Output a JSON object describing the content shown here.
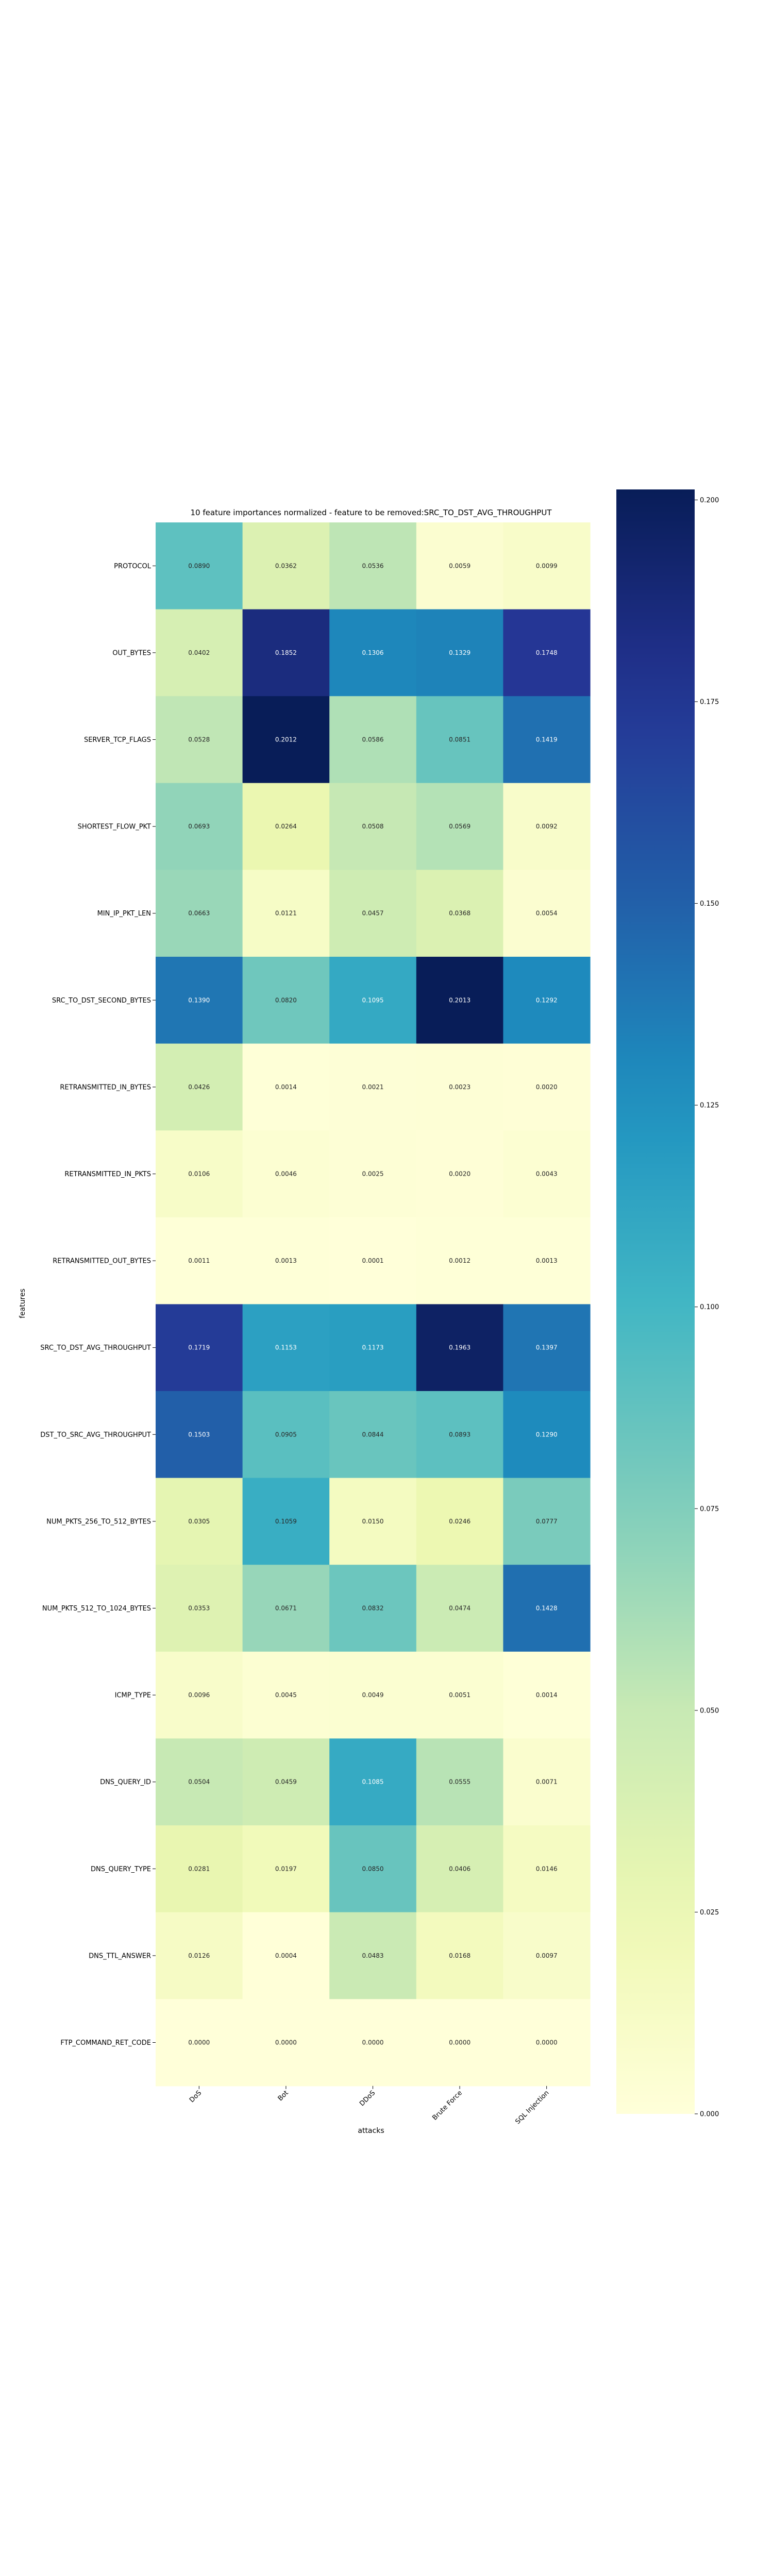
{
  "chart_data": {
    "type": "heatmap",
    "title": "10 feature importances normalized - feature to be removed:SRC_TO_DST_AVG_THROUGHPUT",
    "xlabel": "attacks",
    "ylabel": "features",
    "x_categories": [
      "DoS",
      "Bot",
      "DDoS",
      "Brute Force",
      "SQL Injection"
    ],
    "y_categories": [
      "PROTOCOL",
      "OUT_BYTES",
      "SERVER_TCP_FLAGS",
      "SHORTEST_FLOW_PKT",
      "MIN_IP_PKT_LEN",
      "SRC_TO_DST_SECOND_BYTES",
      "RETRANSMITTED_IN_BYTES",
      "RETRANSMITTED_IN_PKTS",
      "RETRANSMITTED_OUT_BYTES",
      "SRC_TO_DST_AVG_THROUGHPUT",
      "DST_TO_SRC_AVG_THROUGHPUT",
      "NUM_PKTS_256_TO_512_BYTES",
      "NUM_PKTS_512_TO_1024_BYTES",
      "ICMP_TYPE",
      "DNS_QUERY_ID",
      "DNS_QUERY_TYPE",
      "DNS_TTL_ANSWER",
      "FTP_COMMAND_RET_CODE"
    ],
    "values": [
      [
        0.089,
        0.0362,
        0.0536,
        0.0059,
        0.0099
      ],
      [
        0.0402,
        0.1852,
        0.1306,
        0.1329,
        0.1748
      ],
      [
        0.0528,
        0.2012,
        0.0586,
        0.0851,
        0.1419
      ],
      [
        0.0693,
        0.0264,
        0.0508,
        0.0569,
        0.0092
      ],
      [
        0.0663,
        0.0121,
        0.0457,
        0.0368,
        0.0054
      ],
      [
        0.139,
        0.082,
        0.1095,
        0.2013,
        0.1292
      ],
      [
        0.0426,
        0.0014,
        0.0021,
        0.0023,
        0.002
      ],
      [
        0.0106,
        0.0046,
        0.0025,
        0.002,
        0.0043
      ],
      [
        0.0011,
        0.0013,
        0.0001,
        0.0012,
        0.0013
      ],
      [
        0.1719,
        0.1153,
        0.1173,
        0.1963,
        0.1397
      ],
      [
        0.1503,
        0.0905,
        0.0844,
        0.0893,
        0.129
      ],
      [
        0.0305,
        0.1059,
        0.015,
        0.0246,
        0.0777
      ],
      [
        0.0353,
        0.0671,
        0.0832,
        0.0474,
        0.1428
      ],
      [
        0.0096,
        0.0045,
        0.0049,
        0.0051,
        0.0014
      ],
      [
        0.0504,
        0.0459,
        0.1085,
        0.0555,
        0.0071
      ],
      [
        0.0281,
        0.0197,
        0.085,
        0.0406,
        0.0146
      ],
      [
        0.0126,
        0.0004,
        0.0483,
        0.0168,
        0.0097
      ],
      [
        0.0,
        0.0,
        0.0,
        0.0,
        0.0
      ]
    ],
    "colormap": "YlGnBu",
    "colorbar": {
      "vmin": 0.0,
      "vmax": 0.2013,
      "ticks": [
        0.0,
        0.025,
        0.05,
        0.075,
        0.1,
        0.125,
        0.15,
        0.175,
        0.2
      ],
      "tick_labels": [
        "0.000",
        "0.025",
        "0.050",
        "0.075",
        "0.100",
        "0.125",
        "0.150",
        "0.175",
        "0.200"
      ]
    },
    "grid": false
  }
}
